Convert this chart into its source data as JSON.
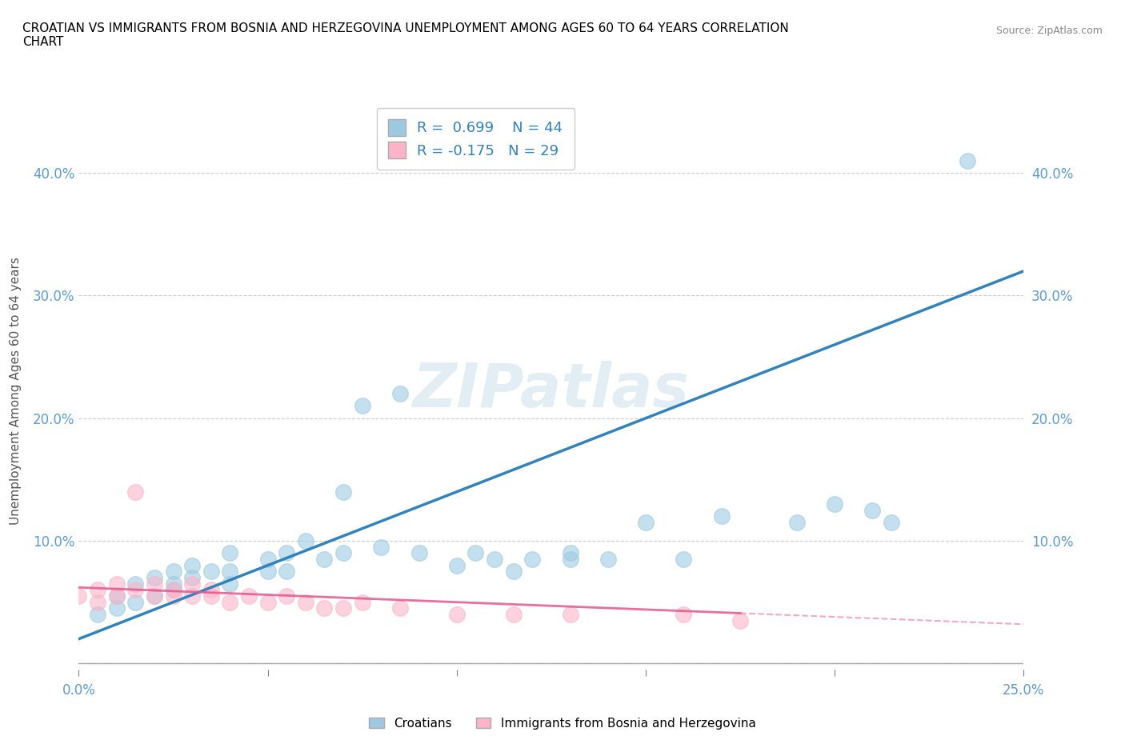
{
  "title": "CROATIAN VS IMMIGRANTS FROM BOSNIA AND HERZEGOVINA UNEMPLOYMENT AMONG AGES 60 TO 64 YEARS CORRELATION\nCHART",
  "source": "Source: ZipAtlas.com",
  "ylabel": "Unemployment Among Ages 60 to 64 years",
  "xlim": [
    0.0,
    0.25
  ],
  "ylim": [
    -0.005,
    0.45
  ],
  "yticks": [
    0.0,
    0.1,
    0.2,
    0.3,
    0.4
  ],
  "ytick_labels": [
    "",
    "10.0%",
    "20.0%",
    "30.0%",
    "40.0%"
  ],
  "bg_color": "#ffffff",
  "watermark": "ZIPatlas",
  "blue_color": "#9ecae1",
  "pink_color": "#fbb4c9",
  "blue_line_color": "#3182bd",
  "pink_line_color": "#e6548c",
  "legend_R_blue": "R =  0.699",
  "legend_N_blue": "N = 44",
  "legend_R_pink": "R = -0.175",
  "legend_N_pink": "N = 29",
  "croatians_x": [
    0.005,
    0.01,
    0.01,
    0.015,
    0.015,
    0.02,
    0.02,
    0.025,
    0.025,
    0.025,
    0.03,
    0.03,
    0.035,
    0.04,
    0.04,
    0.04,
    0.05,
    0.05,
    0.055,
    0.055,
    0.06,
    0.065,
    0.07,
    0.07,
    0.075,
    0.08,
    0.085,
    0.09,
    0.1,
    0.105,
    0.11,
    0.115,
    0.12,
    0.13,
    0.13,
    0.14,
    0.15,
    0.16,
    0.17,
    0.19,
    0.2,
    0.21,
    0.215,
    0.235
  ],
  "croatians_y": [
    0.04,
    0.045,
    0.055,
    0.05,
    0.065,
    0.055,
    0.07,
    0.06,
    0.065,
    0.075,
    0.07,
    0.08,
    0.075,
    0.065,
    0.075,
    0.09,
    0.075,
    0.085,
    0.075,
    0.09,
    0.1,
    0.085,
    0.09,
    0.14,
    0.21,
    0.095,
    0.22,
    0.09,
    0.08,
    0.09,
    0.085,
    0.075,
    0.085,
    0.085,
    0.09,
    0.085,
    0.115,
    0.085,
    0.12,
    0.115,
    0.13,
    0.125,
    0.115,
    0.41
  ],
  "bosnia_x": [
    0.0,
    0.005,
    0.005,
    0.01,
    0.01,
    0.015,
    0.015,
    0.02,
    0.02,
    0.025,
    0.025,
    0.03,
    0.03,
    0.035,
    0.035,
    0.04,
    0.045,
    0.05,
    0.055,
    0.06,
    0.065,
    0.07,
    0.075,
    0.085,
    0.1,
    0.115,
    0.13,
    0.16,
    0.175
  ],
  "bosnia_y": [
    0.055,
    0.05,
    0.06,
    0.055,
    0.065,
    0.06,
    0.14,
    0.055,
    0.065,
    0.055,
    0.06,
    0.055,
    0.065,
    0.055,
    0.06,
    0.05,
    0.055,
    0.05,
    0.055,
    0.05,
    0.045,
    0.045,
    0.05,
    0.045,
    0.04,
    0.04,
    0.04,
    0.04,
    0.035
  ]
}
